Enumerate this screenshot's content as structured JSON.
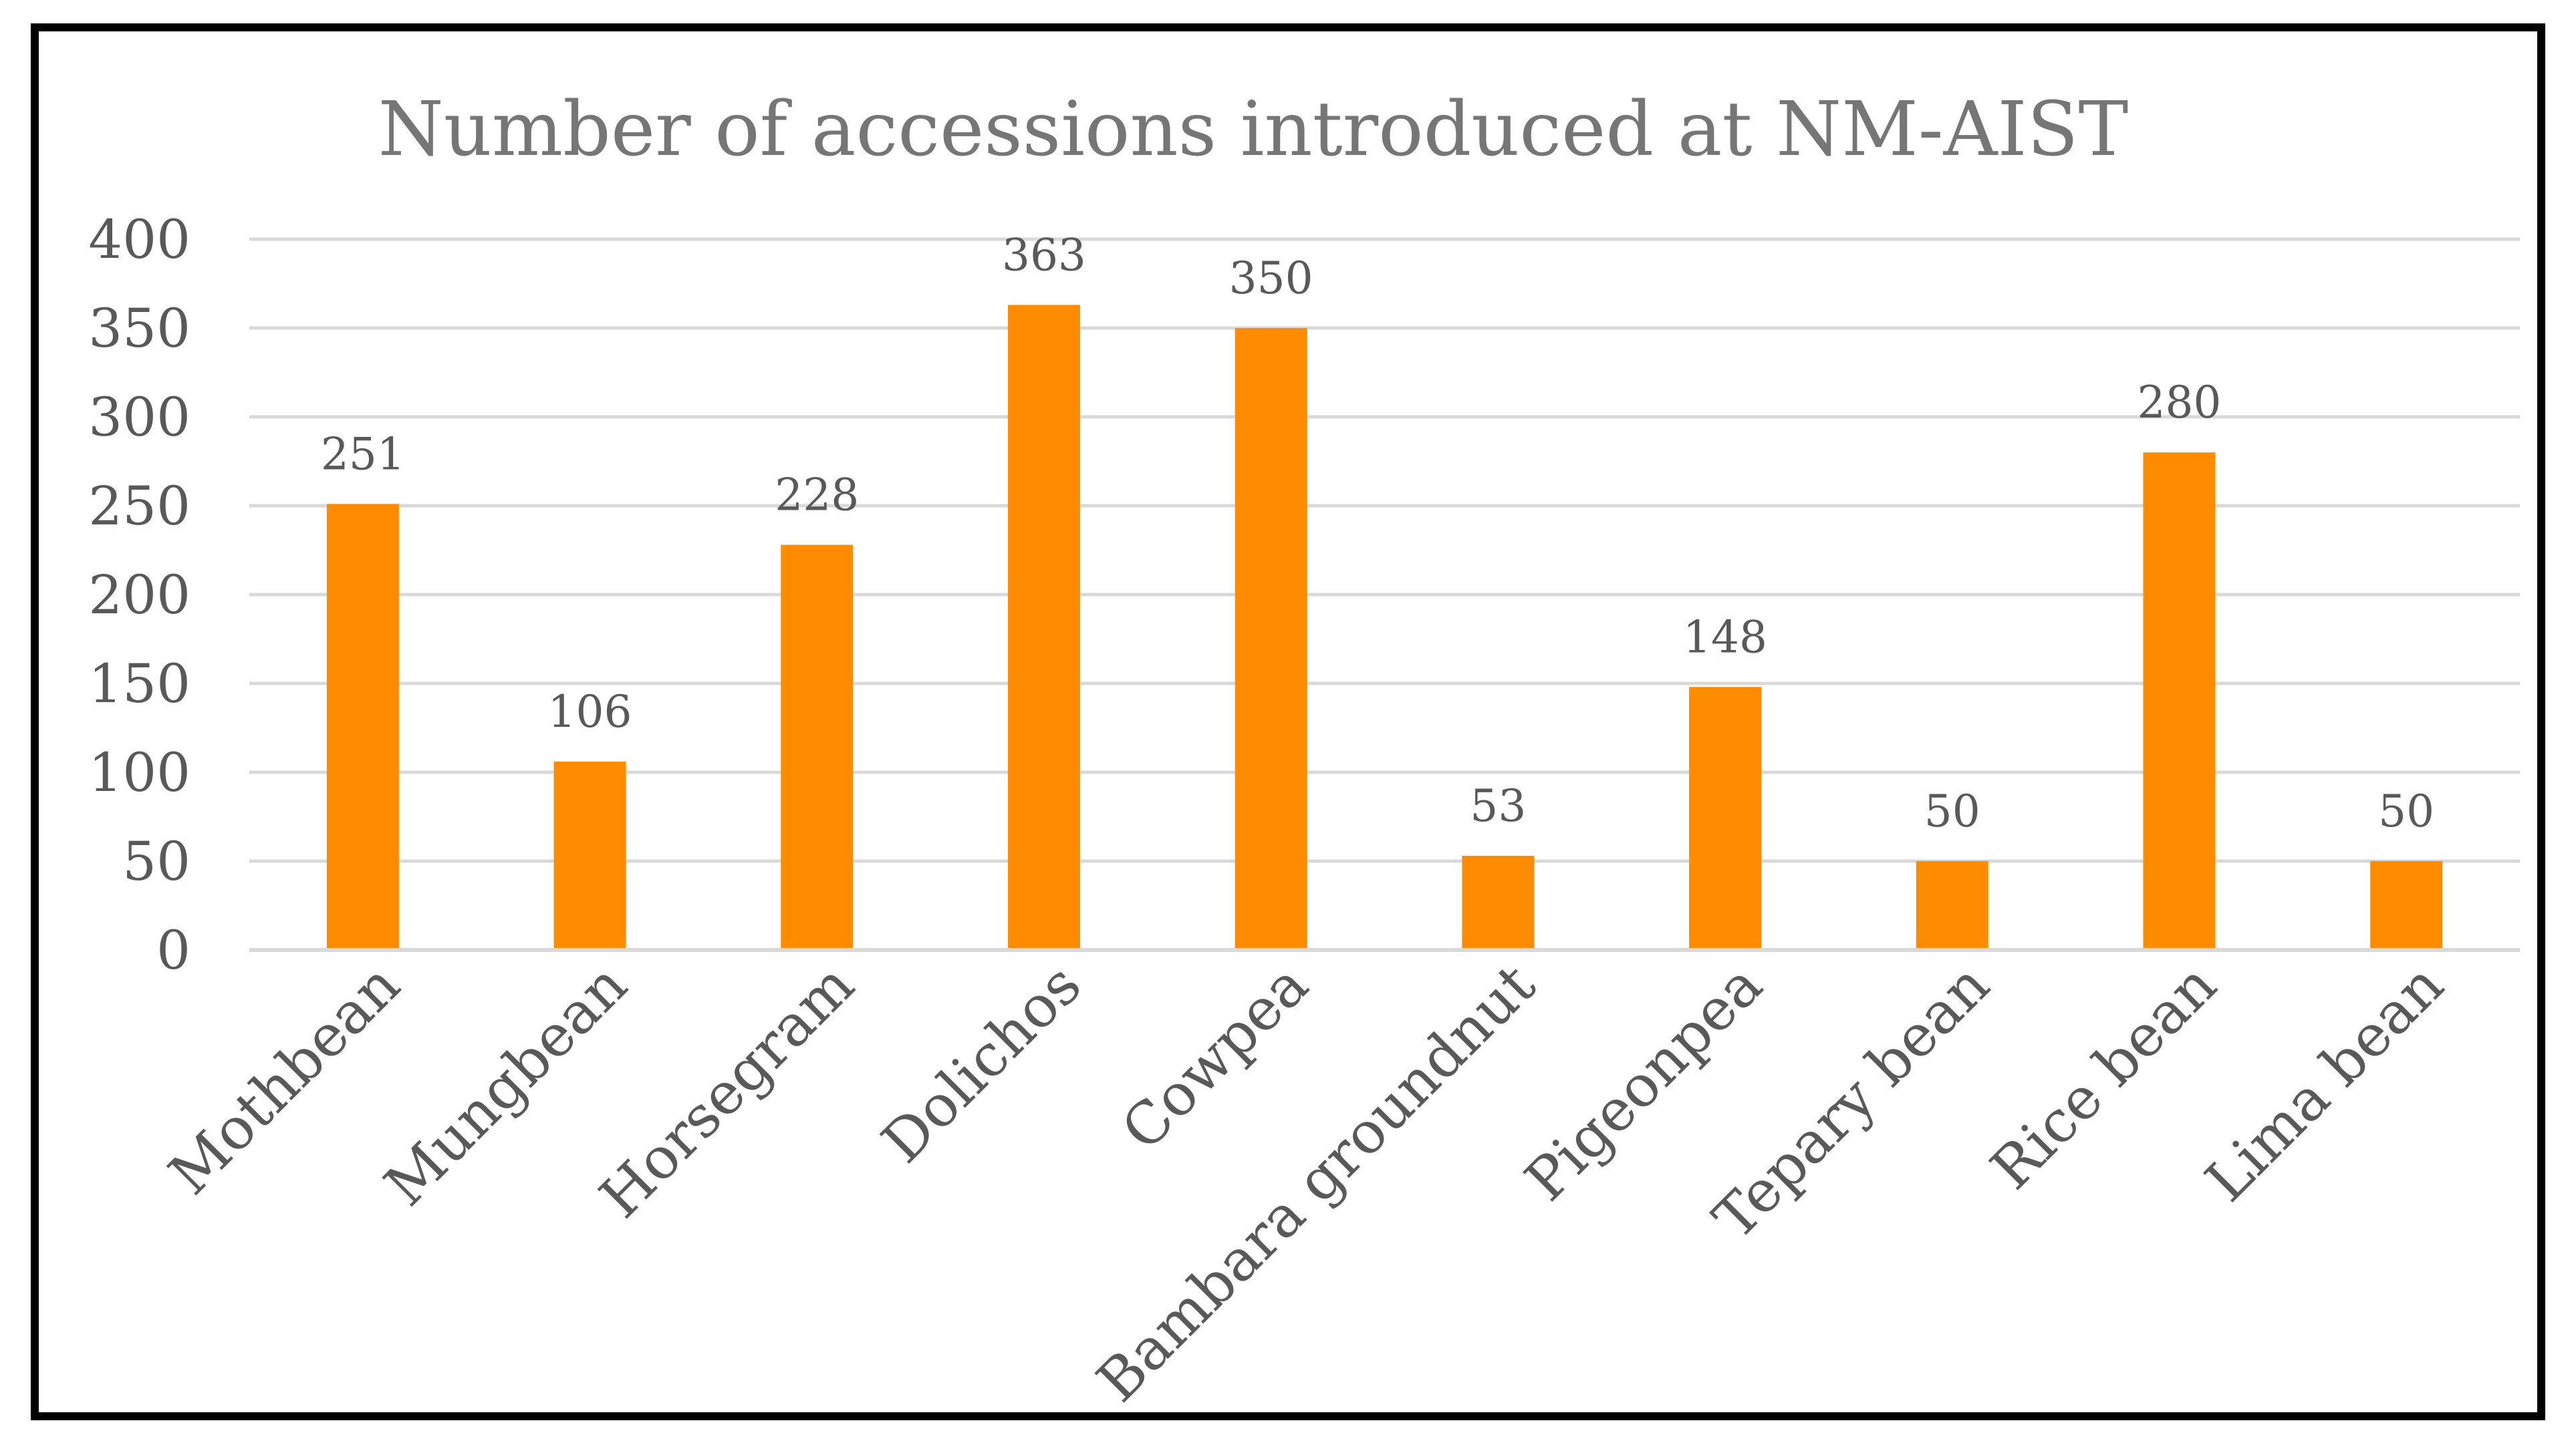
{
  "chart_data": {
    "type": "bar",
    "title": "Number of accessions introduced at NM-AIST",
    "xlabel": "",
    "ylabel": "",
    "categories": [
      "Mothbean",
      "Mungbean",
      "Horsegram",
      "Dolichos",
      "Cowpea",
      "Bambara groundnut",
      "Pigeonpea",
      "Tepary bean",
      "Rice bean",
      "Lima bean"
    ],
    "values": [
      251,
      106,
      228,
      363,
      350,
      53,
      148,
      50,
      280,
      50
    ],
    "data_labels": [
      "251",
      "106",
      "228",
      "363",
      "350",
      "53",
      "148",
      "50",
      "280",
      "50"
    ],
    "yticks": [
      "0",
      "50",
      "100",
      "150",
      "200",
      "250",
      "300",
      "350",
      "400"
    ],
    "ylim": [
      0,
      400
    ],
    "grid": true,
    "legend": "none",
    "colors": {
      "bar": "#FF8C00",
      "grid": "#D9D9D9",
      "text": "#595959",
      "title": "#767676",
      "frame": "#000000"
    }
  }
}
